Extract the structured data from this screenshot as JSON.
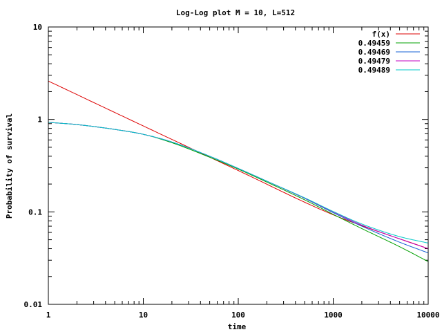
{
  "chart_data": {
    "type": "line",
    "title": "Log-Log plot M = 10, L=512",
    "xlabel": "time",
    "ylabel": "Probability of survival",
    "x_scale": "log",
    "y_scale": "log",
    "xlim": [
      1,
      10000
    ],
    "ylim": [
      0.01,
      10
    ],
    "x_ticks": [
      {
        "value": 1,
        "label": "1"
      },
      {
        "value": 10,
        "label": "10"
      },
      {
        "value": 100,
        "label": "100"
      },
      {
        "value": 1000,
        "label": "1000"
      },
      {
        "value": 10000,
        "label": "10000"
      }
    ],
    "y_ticks": [
      {
        "value": 0.01,
        "label": "0.01"
      },
      {
        "value": 0.1,
        "label": "0.1"
      },
      {
        "value": 1,
        "label": "1"
      },
      {
        "value": 10,
        "label": "10"
      }
    ],
    "grid": false,
    "legend": "top-right",
    "series": [
      {
        "name": "f(x)",
        "color": "#dd0000",
        "x": [
          1,
          10,
          100,
          1000,
          10000
        ],
        "y": [
          2.6,
          0.85,
          0.28,
          0.093,
          0.04
        ]
      },
      {
        "name": "0.49459",
        "color": "#00a000",
        "x": [
          1,
          2,
          5,
          10,
          20,
          50,
          100,
          200,
          500,
          1000,
          2000,
          5000,
          10000
        ],
        "y": [
          0.93,
          0.88,
          0.78,
          0.69,
          0.56,
          0.39,
          0.29,
          0.21,
          0.135,
          0.094,
          0.066,
          0.042,
          0.029
        ]
      },
      {
        "name": "0.49469",
        "color": "#1560d4",
        "x": [
          1,
          2,
          5,
          10,
          20,
          50,
          100,
          200,
          500,
          1000,
          2000,
          5000,
          10000
        ],
        "y": [
          0.93,
          0.88,
          0.78,
          0.69,
          0.57,
          0.4,
          0.295,
          0.215,
          0.14,
          0.098,
          0.07,
          0.047,
          0.036
        ]
      },
      {
        "name": "0.49479",
        "color": "#c000c0",
        "x": [
          1,
          2,
          5,
          10,
          20,
          50,
          100,
          200,
          500,
          1000,
          2000,
          5000,
          10000
        ],
        "y": [
          0.93,
          0.88,
          0.78,
          0.69,
          0.57,
          0.4,
          0.295,
          0.215,
          0.141,
          0.1,
          0.072,
          0.051,
          0.04
        ]
      },
      {
        "name": "0.49489",
        "color": "#00c8c8",
        "x": [
          1,
          2,
          5,
          10,
          20,
          50,
          100,
          200,
          500,
          1000,
          2000,
          5000,
          10000
        ],
        "y": [
          0.93,
          0.88,
          0.78,
          0.69,
          0.57,
          0.4,
          0.295,
          0.215,
          0.142,
          0.101,
          0.074,
          0.054,
          0.046
        ]
      }
    ]
  }
}
